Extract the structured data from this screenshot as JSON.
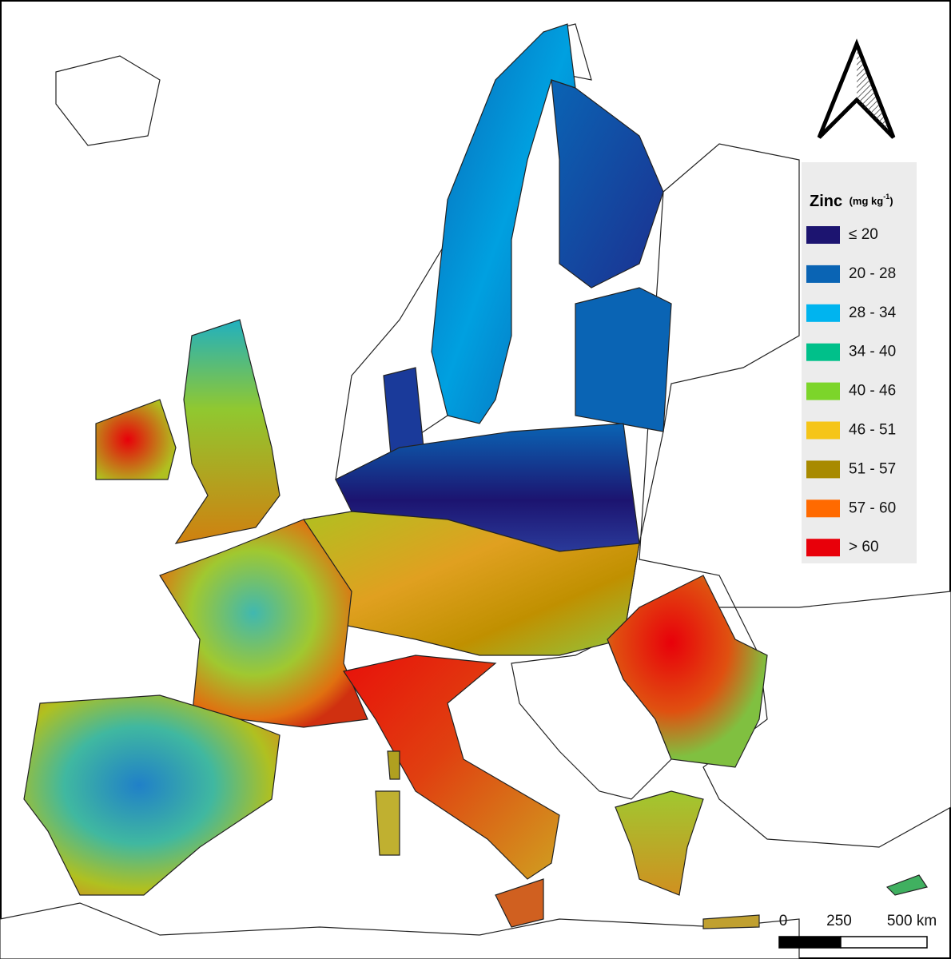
{
  "legend": {
    "title": "Zinc",
    "unit": "(mg kg",
    "unit_superscript": "-1",
    "unit_close": ")",
    "items": [
      {
        "label": "≤ 20",
        "color": "#1c1470"
      },
      {
        "label": "20 - 28",
        "color": "#0a64b4"
      },
      {
        "label": "28 - 34",
        "color": "#00b4ef"
      },
      {
        "label": "34 - 40",
        "color": "#00c08a"
      },
      {
        "label": "40 - 46",
        "color": "#7cd52a"
      },
      {
        "label": "46 - 51",
        "color": "#f5c518"
      },
      {
        "label": "51 - 57",
        "color": "#a88a00"
      },
      {
        "label": "57 - 60",
        "color": "#ff6a00"
      },
      {
        "label": "> 60",
        "color": "#e8000a"
      }
    ]
  },
  "scale_bar": {
    "labels": [
      "0",
      "250",
      "500 km"
    ]
  }
}
